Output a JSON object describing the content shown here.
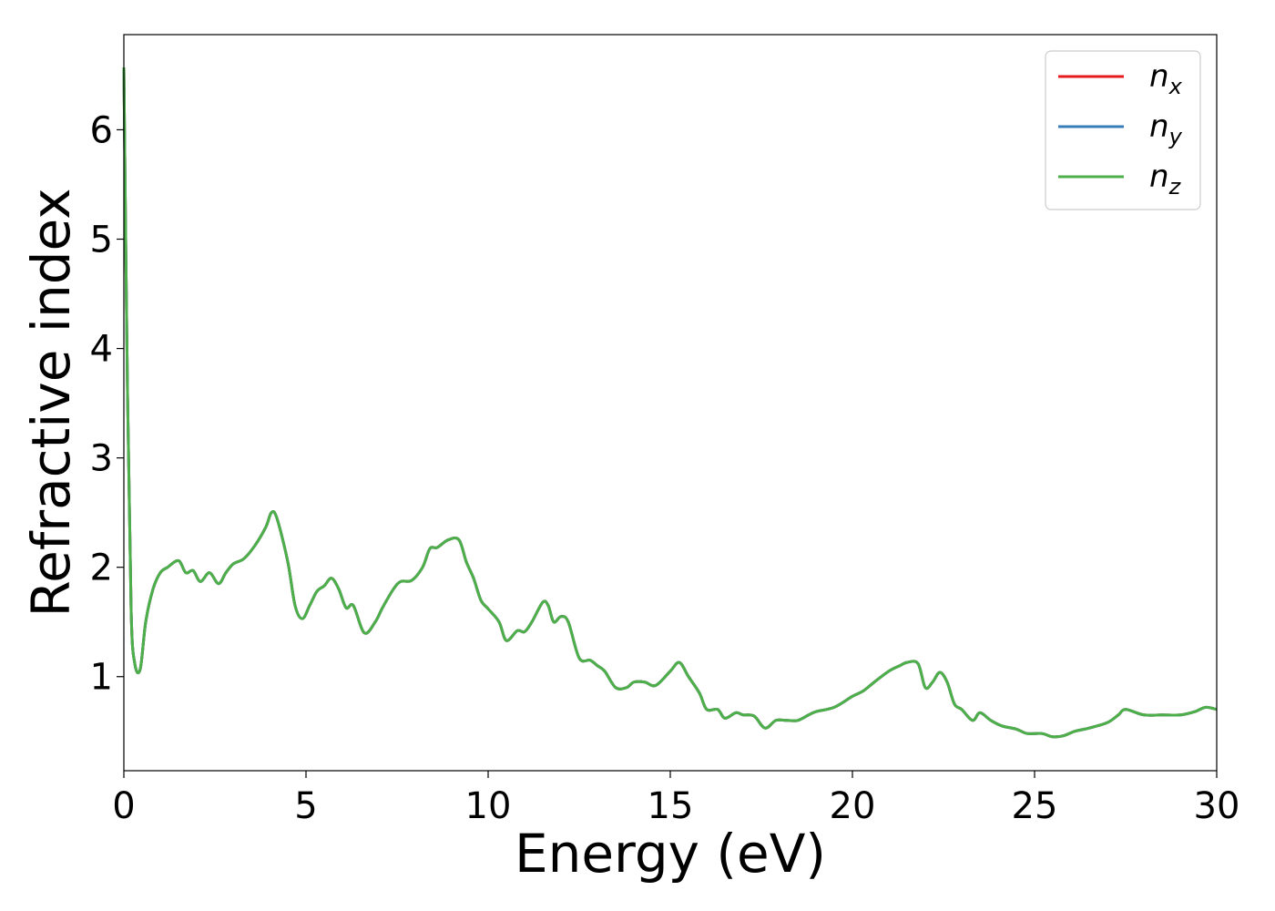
{
  "chart_data": {
    "type": "line",
    "xlabel": "Energy (eV)",
    "ylabel": "Refractive index",
    "xlim": [
      0,
      30
    ],
    "ylim": [
      0.14,
      6.87
    ],
    "xticks": [
      0,
      5,
      10,
      15,
      20,
      25,
      30
    ],
    "yticks": [
      1,
      2,
      3,
      4,
      5,
      6
    ],
    "grid": false,
    "legend_position": "top-right",
    "colors": {
      "n_x": "#e41a1c",
      "n_y": "#377eb8",
      "n_z": "#4daf4a"
    },
    "x": [
      0,
      0.1,
      0.2,
      0.3,
      0.45,
      0.6,
      0.8,
      1.0,
      1.2,
      1.5,
      1.7,
      1.9,
      2.1,
      2.35,
      2.6,
      2.8,
      3.0,
      3.3,
      3.6,
      3.9,
      4.05,
      4.2,
      4.5,
      4.7,
      4.9,
      5.1,
      5.3,
      5.5,
      5.7,
      5.9,
      6.1,
      6.3,
      6.6,
      6.9,
      7.1,
      7.4,
      7.6,
      7.9,
      8.2,
      8.4,
      8.6,
      8.9,
      9.2,
      9.4,
      9.6,
      9.8,
      10.0,
      10.3,
      10.5,
      10.8,
      11.0,
      11.2,
      11.5,
      11.65,
      11.8,
      12.0,
      12.2,
      12.5,
      12.8,
      13.0,
      13.2,
      13.5,
      13.8,
      14.0,
      14.3,
      14.6,
      15.0,
      15.25,
      15.5,
      15.8,
      16.0,
      16.3,
      16.5,
      16.8,
      17.0,
      17.3,
      17.6,
      17.9,
      18.2,
      18.5,
      18.8,
      19.0,
      19.5,
      20.0,
      20.3,
      20.6,
      21.0,
      21.3,
      21.5,
      21.8,
      22.0,
      22.2,
      22.4,
      22.6,
      22.8,
      23.0,
      23.3,
      23.5,
      23.8,
      24.1,
      24.5,
      24.8,
      25.2,
      25.5,
      25.8,
      26.1,
      26.5,
      27.0,
      27.3,
      27.5,
      28.0,
      28.5,
      29.0,
      29.4,
      29.7,
      30.0
    ],
    "series": [
      {
        "name": "n_x",
        "values": [
          6.57,
          3.6,
          1.6,
          1.12,
          1.07,
          1.5,
          1.8,
          1.95,
          2.0,
          2.06,
          1.95,
          1.97,
          1.87,
          1.95,
          1.85,
          1.95,
          2.03,
          2.08,
          2.2,
          2.37,
          2.5,
          2.45,
          2.05,
          1.65,
          1.53,
          1.65,
          1.78,
          1.83,
          1.9,
          1.8,
          1.63,
          1.65,
          1.4,
          1.5,
          1.63,
          1.8,
          1.87,
          1.88,
          2.0,
          2.17,
          2.18,
          2.25,
          2.25,
          2.05,
          1.9,
          1.7,
          1.62,
          1.5,
          1.33,
          1.42,
          1.41,
          1.5,
          1.68,
          1.65,
          1.5,
          1.55,
          1.5,
          1.17,
          1.15,
          1.1,
          1.05,
          0.9,
          0.9,
          0.95,
          0.95,
          0.92,
          1.05,
          1.13,
          1.0,
          0.85,
          0.7,
          0.7,
          0.62,
          0.67,
          0.65,
          0.64,
          0.53,
          0.6,
          0.6,
          0.6,
          0.65,
          0.68,
          0.72,
          0.82,
          0.87,
          0.95,
          1.05,
          1.1,
          1.13,
          1.12,
          0.9,
          0.95,
          1.04,
          0.95,
          0.75,
          0.7,
          0.6,
          0.67,
          0.6,
          0.55,
          0.52,
          0.48,
          0.48,
          0.45,
          0.46,
          0.5,
          0.53,
          0.58,
          0.65,
          0.7,
          0.65,
          0.65,
          0.65,
          0.68,
          0.72,
          0.7
        ]
      },
      {
        "name": "n_y",
        "values": [
          6.57,
          3.6,
          1.6,
          1.12,
          1.07,
          1.5,
          1.8,
          1.95,
          2.0,
          2.06,
          1.95,
          1.97,
          1.87,
          1.95,
          1.85,
          1.95,
          2.03,
          2.08,
          2.2,
          2.37,
          2.5,
          2.45,
          2.05,
          1.65,
          1.53,
          1.65,
          1.78,
          1.83,
          1.9,
          1.8,
          1.63,
          1.65,
          1.4,
          1.5,
          1.63,
          1.8,
          1.87,
          1.88,
          2.0,
          2.17,
          2.18,
          2.25,
          2.25,
          2.05,
          1.9,
          1.7,
          1.62,
          1.5,
          1.33,
          1.42,
          1.41,
          1.5,
          1.68,
          1.65,
          1.5,
          1.55,
          1.5,
          1.17,
          1.15,
          1.1,
          1.05,
          0.9,
          0.9,
          0.95,
          0.95,
          0.92,
          1.05,
          1.13,
          1.0,
          0.85,
          0.7,
          0.7,
          0.62,
          0.67,
          0.65,
          0.64,
          0.53,
          0.6,
          0.6,
          0.6,
          0.65,
          0.68,
          0.72,
          0.82,
          0.87,
          0.95,
          1.05,
          1.1,
          1.13,
          1.12,
          0.9,
          0.95,
          1.04,
          0.95,
          0.75,
          0.7,
          0.6,
          0.67,
          0.6,
          0.55,
          0.52,
          0.48,
          0.48,
          0.45,
          0.46,
          0.5,
          0.53,
          0.58,
          0.65,
          0.7,
          0.65,
          0.65,
          0.65,
          0.68,
          0.72,
          0.7
        ]
      },
      {
        "name": "n_z",
        "values": [
          6.57,
          3.6,
          1.6,
          1.12,
          1.07,
          1.5,
          1.8,
          1.95,
          2.0,
          2.06,
          1.95,
          1.97,
          1.87,
          1.95,
          1.85,
          1.95,
          2.03,
          2.08,
          2.2,
          2.37,
          2.5,
          2.45,
          2.05,
          1.65,
          1.53,
          1.65,
          1.78,
          1.83,
          1.9,
          1.8,
          1.63,
          1.65,
          1.4,
          1.5,
          1.63,
          1.8,
          1.87,
          1.88,
          2.0,
          2.17,
          2.18,
          2.25,
          2.25,
          2.05,
          1.9,
          1.7,
          1.62,
          1.5,
          1.33,
          1.42,
          1.41,
          1.5,
          1.68,
          1.65,
          1.5,
          1.55,
          1.5,
          1.17,
          1.15,
          1.1,
          1.05,
          0.9,
          0.9,
          0.95,
          0.95,
          0.92,
          1.05,
          1.13,
          1.0,
          0.85,
          0.7,
          0.7,
          0.62,
          0.67,
          0.65,
          0.64,
          0.53,
          0.6,
          0.6,
          0.6,
          0.65,
          0.68,
          0.72,
          0.82,
          0.87,
          0.95,
          1.05,
          1.1,
          1.13,
          1.12,
          0.9,
          0.95,
          1.04,
          0.95,
          0.75,
          0.7,
          0.6,
          0.67,
          0.6,
          0.55,
          0.52,
          0.48,
          0.48,
          0.45,
          0.46,
          0.5,
          0.53,
          0.58,
          0.65,
          0.7,
          0.65,
          0.65,
          0.65,
          0.68,
          0.72,
          0.7
        ]
      }
    ],
    "legend": [
      {
        "base": "n",
        "sub": "x",
        "series": "n_x"
      },
      {
        "base": "n",
        "sub": "y",
        "series": "n_y"
      },
      {
        "base": "n",
        "sub": "z",
        "series": "n_z"
      }
    ]
  }
}
